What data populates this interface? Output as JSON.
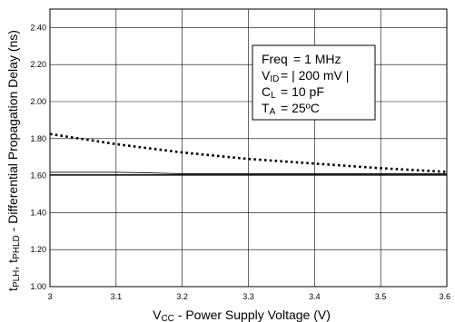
{
  "chart_data": {
    "type": "line",
    "xlabel": {
      "main": "V",
      "sub": "CC",
      "rest": " - Power Supply Voltage (V)"
    },
    "ylabel": {
      "p1": "t",
      "p1sub": "PLH",
      "p2": ", t",
      "p2sub": "PHLD",
      "p3": " - Differential Propagation Delay (ns)"
    },
    "xlim": [
      3.0,
      3.6
    ],
    "ylim": [
      1.0,
      2.5
    ],
    "x_ticks": [
      "3",
      "3.1",
      "3.2",
      "3.3",
      "3.4",
      "3.5",
      "3.6"
    ],
    "y_ticks": [
      "1.00",
      "1.20",
      "1.40",
      "1.60",
      "1.80",
      "2.00",
      "2.20",
      "2.40"
    ],
    "x_tick_values": [
      3.0,
      3.1,
      3.2,
      3.3,
      3.4,
      3.5,
      3.6
    ],
    "y_tick_values": [
      1.0,
      1.2,
      1.4,
      1.6,
      1.8,
      2.0,
      2.2,
      2.4
    ],
    "grid": true,
    "series": [
      {
        "style": "dotted",
        "x": [
          3.0,
          3.1,
          3.2,
          3.3,
          3.4,
          3.5,
          3.6
        ],
        "y": [
          1.825,
          1.77,
          1.725,
          1.69,
          1.665,
          1.64,
          1.62
        ]
      },
      {
        "style": "solid",
        "x": [
          3.0,
          3.1,
          3.15,
          3.2,
          3.3,
          3.4,
          3.5,
          3.6
        ],
        "y": [
          1.618,
          1.618,
          1.615,
          1.61,
          1.61,
          1.61,
          1.61,
          1.61
        ]
      },
      {
        "style": "solid",
        "x": [
          3.0,
          3.6
        ],
        "y": [
          1.605,
          1.605
        ]
      }
    ],
    "legend": {
      "placement": "top-right",
      "lines": [
        {
          "label": "Freq",
          "sub": "",
          "value": "= 1 MHz"
        },
        {
          "label": "V",
          "sub": "ID",
          "value": "= | 200 mV |"
        },
        {
          "label": "C",
          "sub": "L",
          "value": "= 10 pF"
        },
        {
          "label": "T",
          "sub": "A",
          "value": "= 25ºC"
        }
      ]
    }
  }
}
